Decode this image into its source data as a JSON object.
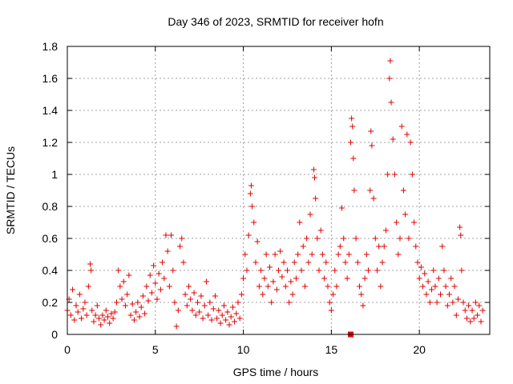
{
  "chart_data": {
    "type": "scatter",
    "title": "Day 346 of 2023, SRMTID for receiver hofn",
    "xlabel": "GPS time / hours",
    "ylabel": "SRMTID / TECUs",
    "xlim": [
      0,
      24
    ],
    "ylim": [
      0,
      1.8
    ],
    "xticks": [
      0,
      5,
      10,
      15,
      20
    ],
    "xtick_labels": [
      "0",
      "5",
      "10",
      "15",
      "20"
    ],
    "yticks": [
      0,
      0.2,
      0.4,
      0.6,
      0.8,
      1.0,
      1.2,
      1.4,
      1.6,
      1.8
    ],
    "ytick_labels": [
      "0",
      "0.2",
      "0.4",
      "0.6",
      "0.8",
      "1",
      "1.2",
      "1.4",
      "1.6",
      "1.8"
    ],
    "grid": true,
    "color": "#e00000",
    "marker": "plus",
    "series": [
      {
        "name": "SRMTID",
        "points": [
          [
            0.0,
            0.15
          ],
          [
            0.1,
            0.22
          ],
          [
            0.2,
            0.12
          ],
          [
            0.3,
            0.28
          ],
          [
            0.4,
            0.09
          ],
          [
            0.5,
            0.18
          ],
          [
            0.6,
            0.14
          ],
          [
            0.7,
            0.25
          ],
          [
            0.8,
            0.1
          ],
          [
            0.9,
            0.16
          ],
          [
            1.0,
            0.2
          ],
          [
            1.1,
            0.12
          ],
          [
            1.2,
            0.3
          ],
          [
            1.3,
            0.44
          ],
          [
            1.35,
            0.4
          ],
          [
            1.4,
            0.15
          ],
          [
            1.5,
            0.08
          ],
          [
            1.6,
            0.12
          ],
          [
            1.7,
            0.18
          ],
          [
            1.8,
            0.1
          ],
          [
            1.9,
            0.06
          ],
          [
            2.0,
            0.12
          ],
          [
            2.1,
            0.09
          ],
          [
            2.2,
            0.15
          ],
          [
            2.3,
            0.11
          ],
          [
            2.4,
            0.07
          ],
          [
            2.5,
            0.13
          ],
          [
            2.6,
            0.1
          ],
          [
            2.7,
            0.14
          ],
          [
            2.8,
            0.2
          ],
          [
            2.9,
            0.4
          ],
          [
            3.0,
            0.3
          ],
          [
            3.1,
            0.22
          ],
          [
            3.2,
            0.33
          ],
          [
            3.3,
            0.18
          ],
          [
            3.4,
            0.25
          ],
          [
            3.5,
            0.37
          ],
          [
            3.6,
            0.12
          ],
          [
            3.7,
            0.19
          ],
          [
            3.8,
            0.09
          ],
          [
            3.9,
            0.14
          ],
          [
            4.0,
            0.2
          ],
          [
            4.1,
            0.11
          ],
          [
            4.2,
            0.17
          ],
          [
            4.3,
            0.24
          ],
          [
            4.4,
            0.13
          ],
          [
            4.5,
            0.3
          ],
          [
            4.6,
            0.21
          ],
          [
            4.7,
            0.37
          ],
          [
            4.8,
            0.26
          ],
          [
            4.9,
            0.43
          ],
          [
            5.0,
            0.32
          ],
          [
            5.1,
            0.22
          ],
          [
            5.2,
            0.38
          ],
          [
            5.3,
            0.28
          ],
          [
            5.4,
            0.45
          ],
          [
            5.5,
            0.35
          ],
          [
            5.6,
            0.62
          ],
          [
            5.7,
            0.52
          ],
          [
            5.8,
            0.3
          ],
          [
            5.9,
            0.62
          ],
          [
            6.0,
            0.4
          ],
          [
            6.1,
            0.2
          ],
          [
            6.2,
            0.05
          ],
          [
            6.3,
            0.15
          ],
          [
            6.4,
            0.55
          ],
          [
            6.5,
            0.6
          ],
          [
            6.6,
            0.45
          ],
          [
            6.7,
            0.25
          ],
          [
            6.8,
            0.18
          ],
          [
            6.9,
            0.3
          ],
          [
            7.0,
            0.22
          ],
          [
            7.1,
            0.15
          ],
          [
            7.2,
            0.26
          ],
          [
            7.3,
            0.12
          ],
          [
            7.4,
            0.2
          ],
          [
            7.5,
            0.14
          ],
          [
            7.6,
            0.24
          ],
          [
            7.7,
            0.1
          ],
          [
            7.8,
            0.18
          ],
          [
            7.9,
            0.33
          ],
          [
            8.0,
            0.12
          ],
          [
            8.1,
            0.2
          ],
          [
            8.2,
            0.09
          ],
          [
            8.3,
            0.16
          ],
          [
            8.4,
            0.24
          ],
          [
            8.5,
            0.1
          ],
          [
            8.6,
            0.15
          ],
          [
            8.7,
            0.07
          ],
          [
            8.8,
            0.12
          ],
          [
            8.9,
            0.18
          ],
          [
            9.0,
            0.09
          ],
          [
            9.1,
            0.14
          ],
          [
            9.2,
            0.06
          ],
          [
            9.3,
            0.11
          ],
          [
            9.4,
            0.17
          ],
          [
            9.5,
            0.08
          ],
          [
            9.6,
            0.13
          ],
          [
            9.7,
            0.2
          ],
          [
            9.8,
            0.1
          ],
          [
            9.9,
            0.25
          ],
          [
            10.0,
            0.35
          ],
          [
            10.1,
            0.5
          ],
          [
            10.2,
            0.4
          ],
          [
            10.3,
            0.62
          ],
          [
            10.4,
            0.88
          ],
          [
            10.45,
            0.93
          ],
          [
            10.5,
            0.8
          ],
          [
            10.6,
            0.7
          ],
          [
            10.7,
            0.45
          ],
          [
            10.8,
            0.58
          ],
          [
            10.9,
            0.3
          ],
          [
            11.0,
            0.4
          ],
          [
            11.1,
            0.25
          ],
          [
            11.2,
            0.35
          ],
          [
            11.3,
            0.5
          ],
          [
            11.4,
            0.3
          ],
          [
            11.5,
            0.42
          ],
          [
            11.6,
            0.2
          ],
          [
            11.7,
            0.33
          ],
          [
            11.8,
            0.5
          ],
          [
            11.9,
            0.28
          ],
          [
            12.0,
            0.4
          ],
          [
            12.1,
            0.52
          ],
          [
            12.2,
            0.36
          ],
          [
            12.3,
            0.45
          ],
          [
            12.4,
            0.3
          ],
          [
            12.5,
            0.4
          ],
          [
            12.6,
            0.2
          ],
          [
            12.7,
            0.33
          ],
          [
            12.8,
            0.25
          ],
          [
            12.9,
            0.45
          ],
          [
            13.0,
            0.35
          ],
          [
            13.1,
            0.5
          ],
          [
            13.2,
            0.7
          ],
          [
            13.3,
            0.4
          ],
          [
            13.4,
            0.55
          ],
          [
            13.5,
            0.3
          ],
          [
            13.6,
            0.6
          ],
          [
            13.7,
            0.45
          ],
          [
            13.8,
            0.75
          ],
          [
            13.9,
            0.5
          ],
          [
            14.0,
            1.03
          ],
          [
            14.05,
            0.98
          ],
          [
            14.1,
            0.85
          ],
          [
            14.2,
            0.6
          ],
          [
            14.3,
            0.4
          ],
          [
            14.4,
            0.65
          ],
          [
            14.5,
            0.5
          ],
          [
            14.6,
            0.35
          ],
          [
            14.7,
            0.45
          ],
          [
            14.8,
            0.3
          ],
          [
            14.9,
            0.2
          ],
          [
            15.0,
            0.15
          ],
          [
            15.1,
            0.25
          ],
          [
            15.2,
            0.4
          ],
          [
            15.3,
            0.3
          ],
          [
            15.4,
            0.5
          ],
          [
            15.5,
            0.55
          ],
          [
            15.6,
            0.79
          ],
          [
            15.7,
            0.6
          ],
          [
            15.8,
            0.45
          ],
          [
            15.9,
            0.35
          ],
          [
            16.0,
            0.5
          ],
          [
            16.1,
            1.2
          ],
          [
            16.15,
            1.35
          ],
          [
            16.2,
            1.3
          ],
          [
            16.25,
            1.1
          ],
          [
            16.3,
            0.9
          ],
          [
            16.4,
            0.6
          ],
          [
            16.5,
            0.45
          ],
          [
            16.6,
            0.3
          ],
          [
            16.7,
            0.25
          ],
          [
            16.8,
            0.18
          ],
          [
            16.9,
            0.35
          ],
          [
            17.0,
            0.5
          ],
          [
            17.1,
            0.4
          ],
          [
            17.2,
            0.9
          ],
          [
            17.25,
            1.27
          ],
          [
            17.3,
            1.18
          ],
          [
            17.4,
            0.85
          ],
          [
            17.5,
            0.6
          ],
          [
            17.6,
            0.4
          ],
          [
            17.7,
            0.55
          ],
          [
            17.8,
            0.3
          ],
          [
            17.9,
            0.45
          ],
          [
            18.0,
            0.55
          ],
          [
            18.1,
            0.65
          ],
          [
            18.2,
            1.0
          ],
          [
            18.3,
            1.6
          ],
          [
            18.35,
            1.71
          ],
          [
            18.4,
            1.45
          ],
          [
            18.5,
            1.22
          ],
          [
            18.6,
            1.0
          ],
          [
            18.7,
            0.7
          ],
          [
            18.8,
            0.5
          ],
          [
            18.9,
            0.6
          ],
          [
            19.0,
            1.3
          ],
          [
            19.1,
            0.9
          ],
          [
            19.2,
            0.75
          ],
          [
            19.3,
            1.25
          ],
          [
            19.4,
            0.6
          ],
          [
            19.5,
            1.2
          ],
          [
            19.6,
            1.0
          ],
          [
            19.7,
            0.7
          ],
          [
            19.8,
            0.55
          ],
          [
            19.9,
            0.45
          ],
          [
            20.0,
            0.35
          ],
          [
            20.1,
            0.42
          ],
          [
            20.2,
            0.3
          ],
          [
            20.3,
            0.38
          ],
          [
            20.4,
            0.25
          ],
          [
            20.5,
            0.33
          ],
          [
            20.6,
            0.2
          ],
          [
            20.7,
            0.28
          ],
          [
            20.8,
            0.4
          ],
          [
            20.9,
            0.3
          ],
          [
            21.0,
            0.2
          ],
          [
            21.1,
            0.35
          ],
          [
            21.2,
            0.25
          ],
          [
            21.3,
            0.55
          ],
          [
            21.4,
            0.4
          ],
          [
            21.5,
            0.3
          ],
          [
            21.6,
            0.18
          ],
          [
            21.7,
            0.25
          ],
          [
            21.8,
            0.35
          ],
          [
            21.9,
            0.2
          ],
          [
            22.0,
            0.3
          ],
          [
            22.1,
            0.12
          ],
          [
            22.2,
            0.22
          ],
          [
            22.3,
            0.67
          ],
          [
            22.35,
            0.62
          ],
          [
            22.4,
            0.4
          ],
          [
            22.5,
            0.2
          ],
          [
            22.6,
            0.15
          ],
          [
            22.7,
            0.1
          ],
          [
            22.8,
            0.18
          ],
          [
            22.9,
            0.08
          ],
          [
            23.0,
            0.15
          ],
          [
            23.1,
            0.1
          ],
          [
            23.2,
            0.2
          ],
          [
            23.3,
            0.12
          ],
          [
            23.4,
            0.18
          ],
          [
            23.5,
            0.08
          ],
          [
            23.6,
            0.15
          ]
        ]
      }
    ],
    "highlight_point": [
      16.1,
      0.0
    ]
  }
}
